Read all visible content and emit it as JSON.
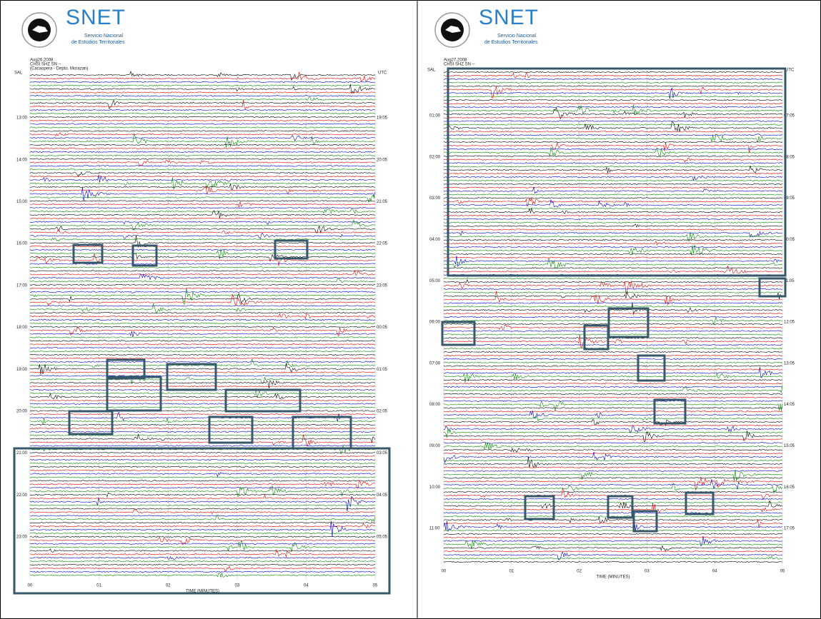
{
  "panels": [
    {
      "logo": {
        "name": "SNET",
        "line1": "Servicio Nacional",
        "line2": "de Estudios Territoriales"
      },
      "header": [
        "Aug26,2008",
        "CHSI SHZ SN --",
        "(Cacaopera - Depto. Morazan)"
      ],
      "station": "SAL",
      "zone": "UTC",
      "left_times": [
        "13:00",
        "14:00",
        "15:00",
        "16:00",
        "17:00",
        "18:00",
        "19:00",
        "20:00",
        "21:00",
        "22:00",
        "23:00"
      ],
      "right_times": [
        "19:05",
        "20:05",
        "21:05",
        "22:05",
        "23:05",
        "00:05",
        "01:05",
        "02:05",
        "03:05",
        "04:05",
        "05:05"
      ],
      "x_ticks": [
        "00",
        "01",
        "02",
        "03",
        "04",
        "05"
      ],
      "x_label": "TIME (MINUTES)"
    },
    {
      "logo": {
        "name": "SNET",
        "line1": "Servicio Nacional",
        "line2": "de Estudios Territoriales"
      },
      "header": [
        "Aug27,2008",
        "CHSI SHZ SN --"
      ],
      "station": "SAL",
      "zone": "UTC",
      "left_times": [
        "01:00",
        "02:00",
        "03:00",
        "04:00",
        "05:00",
        "06:00",
        "07:00",
        "08:00",
        "09:00",
        "10:00",
        "11:00"
      ],
      "right_times": [
        "07:05",
        "08:05",
        "09:05",
        "10:05",
        "11:05",
        "12:05",
        "13:05",
        "14:05",
        "15:05",
        "16:05",
        "17:05"
      ],
      "x_ticks": [
        "00",
        "01",
        "02",
        "03",
        "04",
        "05"
      ],
      "x_label": "TIME (MINUTES)"
    }
  ]
}
